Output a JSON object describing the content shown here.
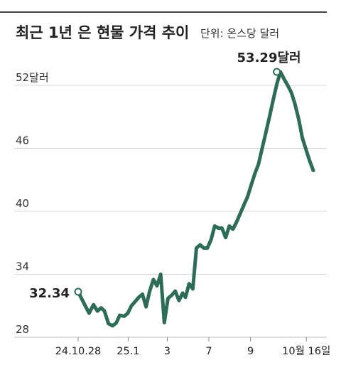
{
  "chart_data": {
    "type": "line",
    "title": "최근 1년 은 현물 가격 추이",
    "unit": "단위: 온스당 달러",
    "ylim": [
      28,
      54
    ],
    "yticks": [
      {
        "value": 28,
        "label": "28"
      },
      {
        "value": 34,
        "label": "34"
      },
      {
        "value": 40,
        "label": "40"
      },
      {
        "value": 46,
        "label": "46"
      },
      {
        "value": 52,
        "label": "52달러"
      }
    ],
    "xticks": [
      {
        "x": 0,
        "label": "24.10.28"
      },
      {
        "x": 13.7,
        "label": "25.1"
      },
      {
        "x": 24.4,
        "label": "3"
      },
      {
        "x": 35.8,
        "label": "7"
      },
      {
        "x": 47.2,
        "label": "9"
      },
      {
        "x": 62.5,
        "label": "10월 16일"
      }
    ],
    "grid": true,
    "color": "#2e6b58",
    "series": [
      {
        "x": [
          0,
          1.5,
          3,
          4.2,
          5.3,
          6.3,
          7.2,
          8.3,
          9.4,
          10.4,
          11.4,
          12.6,
          13.6,
          14.6,
          15.6,
          16.6,
          17.6,
          18.6,
          19.6,
          20.6,
          21.6,
          22.6,
          23.6,
          24.6,
          25.6,
          26.6,
          27.6,
          28.6,
          29.4,
          30.4,
          31.4,
          32.4,
          33.4,
          34.4,
          35.4,
          36.4,
          37.4,
          38.4,
          39.4,
          40.4,
          41.4,
          42.4,
          43.4,
          44.4,
          45.4,
          46.4,
          47.4,
          48.4,
          49.4,
          50.4,
          51.4,
          52.4,
          53.4,
          54.4,
          55.4,
          56.4,
          57.4,
          58.4,
          59.4,
          60.4,
          61.4,
          62.4,
          63.4,
          64.4
        ],
        "values": [
          32.34,
          31.3,
          30.3,
          31.1,
          30.5,
          30.8,
          30.5,
          29.3,
          29.1,
          29.35,
          30.1,
          30.0,
          30.3,
          31.0,
          31.4,
          31.8,
          32.1,
          30.9,
          32.4,
          33.5,
          32.9,
          34.0,
          29.4,
          31.7,
          32.0,
          32.4,
          31.5,
          32.2,
          31.8,
          33.1,
          32.6,
          36.5,
          36.8,
          36.5,
          36.5,
          37.3,
          38.6,
          38.4,
          38.4,
          37.5,
          38.6,
          38.3,
          39.0,
          39.8,
          40.6,
          41.4,
          42.5,
          43.6,
          44.5,
          46.0,
          47.5,
          49.0,
          50.6,
          52.1,
          53.29,
          52.6,
          52.0,
          51.3,
          50.2,
          48.8,
          47.0,
          45.9,
          44.8,
          43.9
        ]
      }
    ],
    "annotations": [
      {
        "label": "32.34",
        "x": 0,
        "value": 32.34
      },
      {
        "label": "53.29달러",
        "x": 54.4,
        "value": 53.29
      }
    ]
  }
}
